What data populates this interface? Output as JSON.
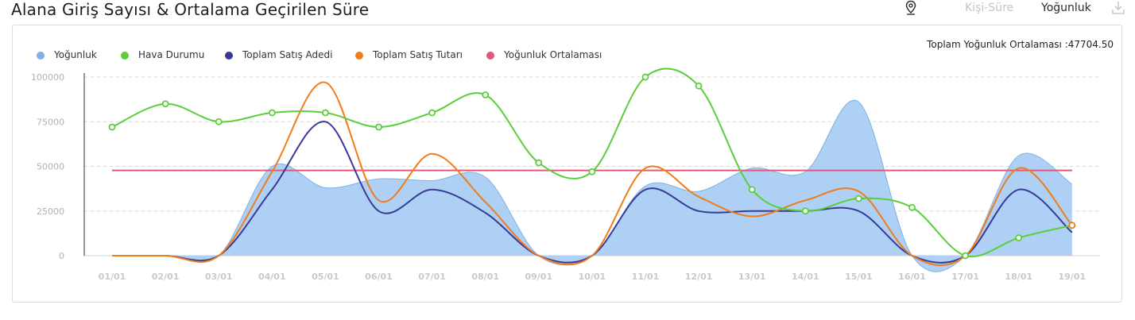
{
  "header": {
    "title": "Alana Giriş Sayısı & Ortalama Geçirilen Süre",
    "kisi_sure_label": "Kişi-Süre",
    "yogunluk_label": "Yoğunluk"
  },
  "colors": {
    "yogunluk": "#7fb0e6",
    "yogunluk_fill": "#a9cdf3",
    "hava": "#5cce3a",
    "adet": "#3a3a96",
    "tutar": "#f07c1a",
    "ortalama": "#e0587a",
    "grid": "#d9d9d9",
    "tick": "#b0b0b0"
  },
  "chart_data": {
    "type": "line",
    "title": "Alana Giriş Sayısı & Ortalama Geçirilen Süre",
    "average_label": "Toplam Yoğunluk Ortalaması :47704.50",
    "categories": [
      "01/01",
      "02/01",
      "03/01",
      "04/01",
      "05/01",
      "06/01",
      "07/01",
      "08/01",
      "09/01",
      "10/01",
      "11/01",
      "12/01",
      "13/01",
      "14/01",
      "15/01",
      "16/01",
      "17/01",
      "18/01",
      "19/01"
    ],
    "y_ticks": [
      "0",
      "25000",
      "50000",
      "75000",
      "100000"
    ],
    "ylim": [
      0,
      100000
    ],
    "grid": true,
    "legend_position": "top-left",
    "series": [
      {
        "name": "Yoğunluk",
        "type": "area",
        "color_key": "yogunluk",
        "values": [
          0,
          0,
          0,
          50000,
          38000,
          43000,
          42000,
          44000,
          0,
          0,
          39000,
          36000,
          49000,
          47000,
          86000,
          0,
          0,
          56000,
          40000
        ]
      },
      {
        "name": "Hava Durumu",
        "type": "line",
        "color_key": "hava",
        "markers": true,
        "values": [
          72000,
          85000,
          75000,
          80000,
          80000,
          72000,
          80000,
          90000,
          52000,
          47000,
          100000,
          95000,
          37000,
          25000,
          32000,
          27000,
          0,
          10000,
          17000
        ]
      },
      {
        "name": "Toplam Satış Adedi",
        "type": "line",
        "color_key": "adet",
        "values": [
          0,
          0,
          0,
          37000,
          75000,
          25000,
          37000,
          24000,
          0,
          0,
          37000,
          25000,
          25000,
          25000,
          25000,
          0,
          0,
          37000,
          13000
        ]
      },
      {
        "name": "Toplam Satış Tutarı",
        "type": "line",
        "color_key": "tutar",
        "values": [
          0,
          0,
          0,
          47000,
          97000,
          31000,
          57000,
          30000,
          0,
          0,
          49000,
          33000,
          22000,
          31000,
          36000,
          0,
          0,
          49000,
          17000
        ]
      },
      {
        "name": "Yoğunluk Ortalaması",
        "type": "flat",
        "color_key": "ortalama",
        "values": [
          47704.5,
          47704.5,
          47704.5,
          47704.5,
          47704.5,
          47704.5,
          47704.5,
          47704.5,
          47704.5,
          47704.5,
          47704.5,
          47704.5,
          47704.5,
          47704.5,
          47704.5,
          47704.5,
          47704.5,
          47704.5,
          47704.5
        ]
      }
    ]
  }
}
